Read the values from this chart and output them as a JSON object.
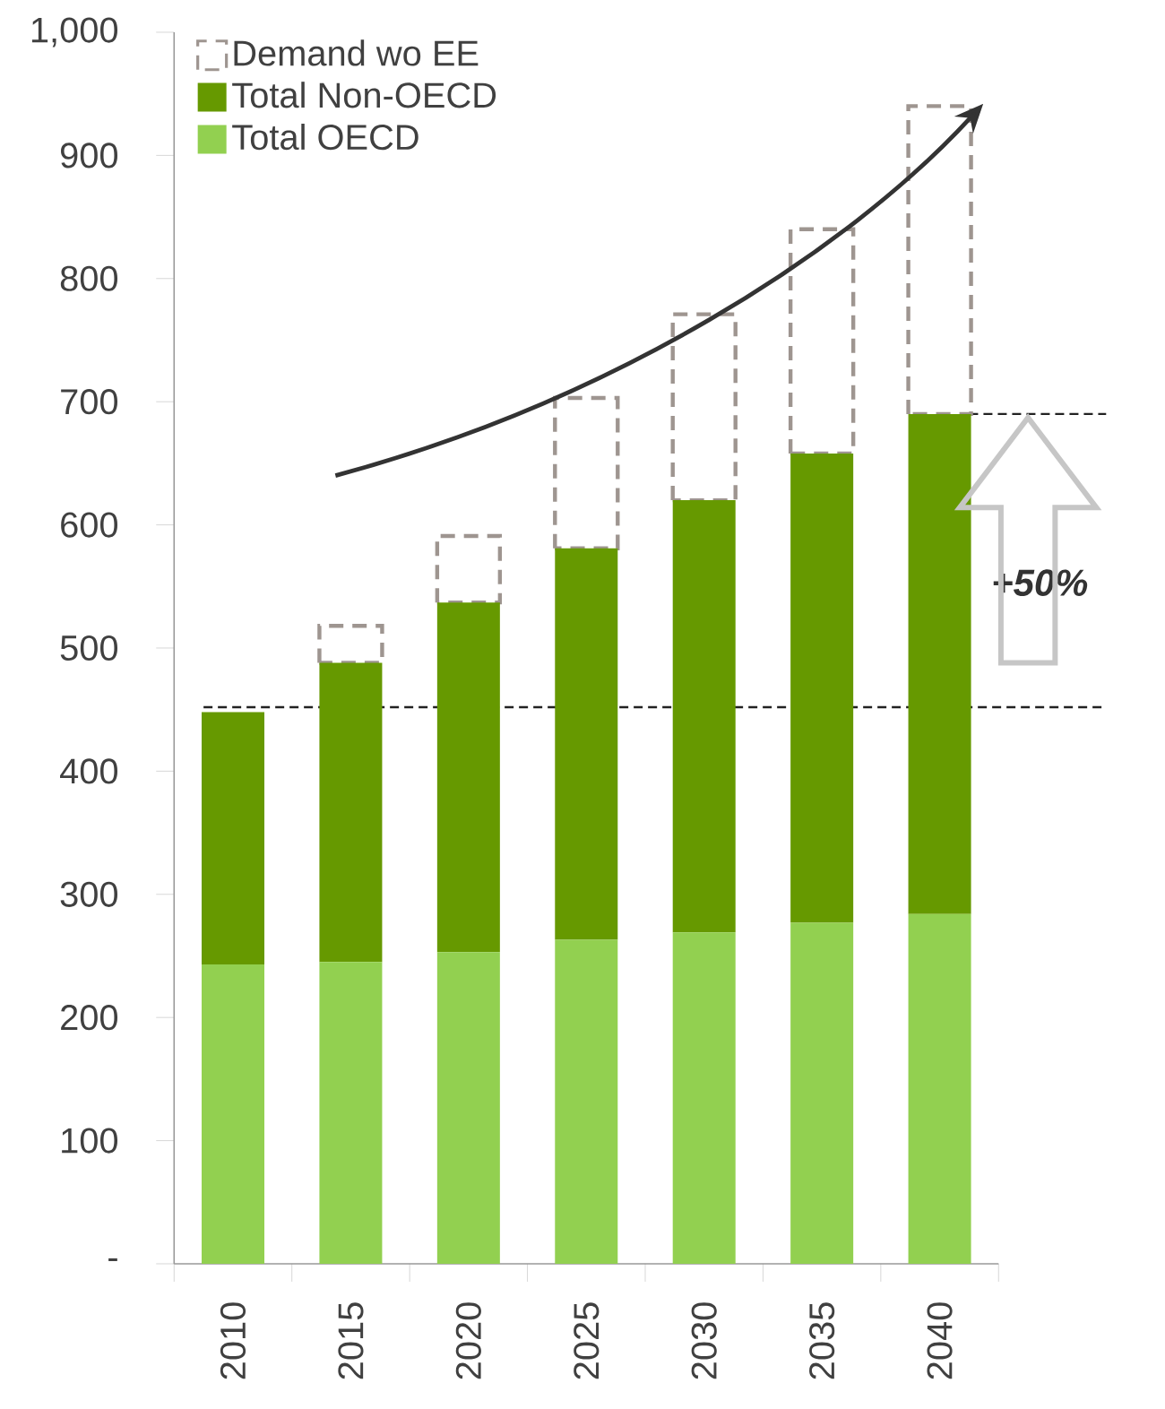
{
  "chart_data": {
    "type": "bar",
    "stacked": true,
    "categories": [
      "2010",
      "2015",
      "2020",
      "2025",
      "2030",
      "2035",
      "2040"
    ],
    "series": [
      {
        "name": "Total OECD",
        "color": "#92d050",
        "values": [
          243,
          245,
          253,
          263,
          269,
          277,
          284
        ]
      },
      {
        "name": "Total Non-OECD",
        "color": "#669900",
        "values": [
          205,
          243,
          284,
          318,
          351,
          381,
          406
        ]
      },
      {
        "name": "Demand wo EE",
        "color": "#9e9590",
        "line_style": "dashed",
        "values": [
          null,
          30,
          54,
          122,
          151,
          182,
          250
        ]
      }
    ],
    "ylim": [
      0,
      1000
    ],
    "yticks": [
      {
        "value": 0,
        "label": "-"
      },
      100,
      200,
      300,
      400,
      500,
      600,
      700,
      800,
      900,
      {
        "value": 1000,
        "label": "1,000"
      }
    ],
    "ref_lines": [
      {
        "axis": "y",
        "value": 452,
        "color": "#222222",
        "line_style": "dashed"
      },
      {
        "axis": "y",
        "value": 690,
        "color": "#222222",
        "line_style": "dashed"
      }
    ],
    "annotations": [
      "+50%"
    ],
    "legend": "top left",
    "grid": false
  }
}
